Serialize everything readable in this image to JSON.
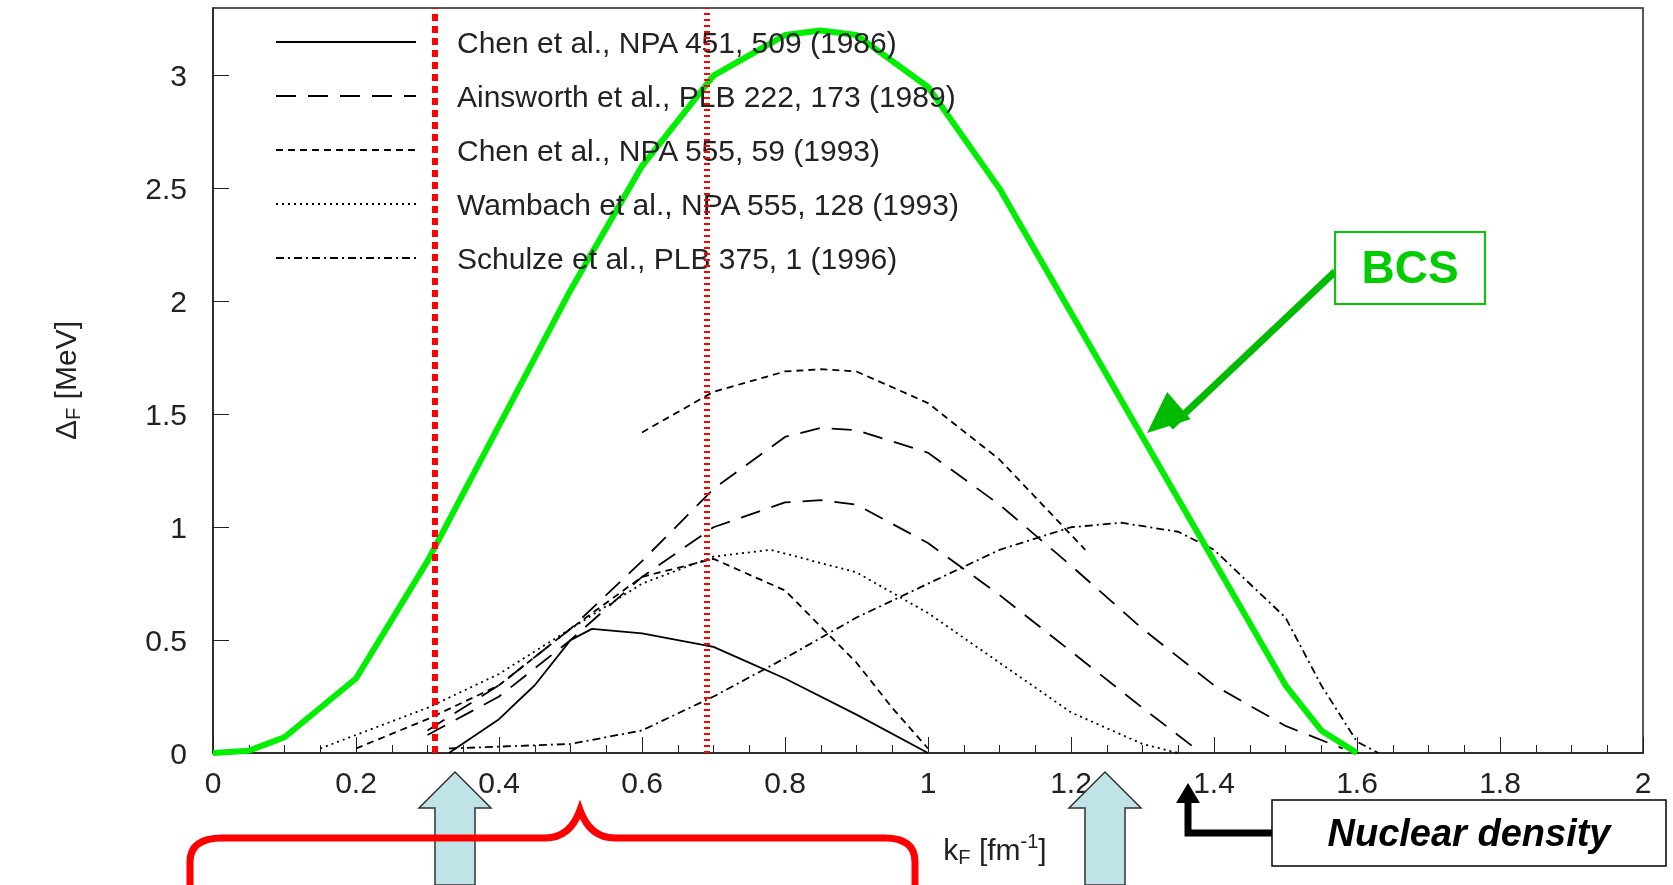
{
  "chart_data": {
    "type": "line",
    "xlabel": "k$_{F}$ [fm$^{-1}$]",
    "ylabel": "Δ$_{F}$ [MeV]",
    "xlim": [
      0,
      2
    ],
    "xticks": [
      0,
      0.2,
      0.4,
      0.6,
      0.8,
      1,
      1.2,
      1.4,
      1.6,
      1.8,
      2
    ],
    "ylim": [
      0,
      3.3
    ],
    "yticks": [
      0,
      0.5,
      1,
      1.5,
      2,
      2.5,
      3
    ],
    "grid": false,
    "legend": "top left",
    "marker": "none",
    "series": [
      {
        "name": "Chen et al., NPA 451, 509 (1986)",
        "color": "#000000",
        "line_style": "solid",
        "x": [
          0.33,
          0.4,
          0.45,
          0.5,
          0.53,
          0.6,
          0.7,
          0.8,
          0.9,
          1.0
        ],
        "values": [
          0,
          0.15,
          0.3,
          0.5,
          0.55,
          0.53,
          0.47,
          0.33,
          0.17,
          0
        ]
      },
      {
        "name": "Ainsworth et al., PLB 222, 173 (1989)",
        "color": "#000000",
        "line_style": "longdash",
        "x": [
          0.3,
          0.4,
          0.5,
          0.6,
          0.7,
          0.8,
          0.85,
          0.9,
          1.0,
          1.1,
          1.2,
          1.3,
          1.4,
          1.5,
          1.58
        ],
        "values": [
          0.1,
          0.3,
          0.55,
          0.85,
          1.17,
          1.4,
          1.44,
          1.43,
          1.33,
          1.1,
          0.83,
          0.55,
          0.3,
          0.12,
          0.02
        ]
      },
      {
        "color": "#000000",
        "line_style": "longdash",
        "x": [
          0.3,
          0.4,
          0.5,
          0.6,
          0.7,
          0.8,
          0.85,
          0.9,
          1.0,
          1.1,
          1.2,
          1.3,
          1.37
        ],
        "values": [
          0.08,
          0.25,
          0.5,
          0.78,
          1.0,
          1.11,
          1.12,
          1.1,
          0.93,
          0.7,
          0.45,
          0.2,
          0.03
        ]
      },
      {
        "name": "Chen et al., NPA 555, 59 (1993)",
        "color": "#000000",
        "line_style": "dashed",
        "x": [
          0.6,
          0.7,
          0.8,
          0.85,
          0.9,
          1.0,
          1.1,
          1.22
        ],
        "values": [
          1.42,
          1.6,
          1.69,
          1.7,
          1.69,
          1.55,
          1.3,
          0.9
        ]
      },
      {
        "color": "#000000",
        "line_style": "dashed",
        "x": [
          0.2,
          0.3,
          0.4,
          0.5,
          0.6,
          0.7,
          0.8,
          0.9,
          0.95,
          1.0
        ],
        "values": [
          0.02,
          0.15,
          0.3,
          0.55,
          0.78,
          0.86,
          0.72,
          0.4,
          0.2,
          0.02
        ]
      },
      {
        "name": "Wambach et al., NPA 555, 128 (1993)",
        "color": "#000000",
        "line_style": "dotted",
        "x": [
          0.15,
          0.3,
          0.4,
          0.5,
          0.6,
          0.7,
          0.78,
          0.9,
          1.0,
          1.1,
          1.2,
          1.3,
          1.35
        ],
        "values": [
          0.02,
          0.2,
          0.35,
          0.55,
          0.75,
          0.87,
          0.9,
          0.8,
          0.62,
          0.4,
          0.18,
          0.04,
          0
        ]
      },
      {
        "name": "Schulze et al., PLB 375, 1 (1996)",
        "color": "#000000",
        "line_style": "dashdot",
        "x": [
          0.33,
          0.5,
          0.6,
          0.7,
          0.8,
          0.9,
          1.0,
          1.1,
          1.2,
          1.27,
          1.35,
          1.4,
          1.5,
          1.55,
          1.6,
          1.63
        ],
        "values": [
          0.02,
          0.04,
          0.1,
          0.25,
          0.42,
          0.6,
          0.75,
          0.9,
          1.0,
          1.02,
          0.98,
          0.9,
          0.6,
          0.3,
          0.05,
          0
        ]
      },
      {
        "name": "BCS",
        "color": "#00ee00",
        "line_style": "solid",
        "x": [
          0,
          0.05,
          0.1,
          0.2,
          0.3,
          0.4,
          0.5,
          0.6,
          0.7,
          0.8,
          0.85,
          0.9,
          1.0,
          1.1,
          1.2,
          1.3,
          1.4,
          1.5,
          1.55,
          1.6
        ],
        "values": [
          0,
          0.01,
          0.07,
          0.33,
          0.85,
          1.45,
          2.05,
          2.6,
          3.0,
          3.18,
          3.2,
          3.18,
          2.95,
          2.5,
          1.95,
          1.4,
          0.85,
          0.3,
          0.1,
          0
        ]
      }
    ],
    "ref_lines": [
      {
        "axis": "x",
        "value": 0.31,
        "color": "#ff0000",
        "line_style": "dashed"
      },
      {
        "axis": "x",
        "value": 0.69,
        "color": "#ff0000",
        "line_style": "dotted"
      }
    ],
    "annotations": [
      "Nuclear density"
    ]
  }
}
